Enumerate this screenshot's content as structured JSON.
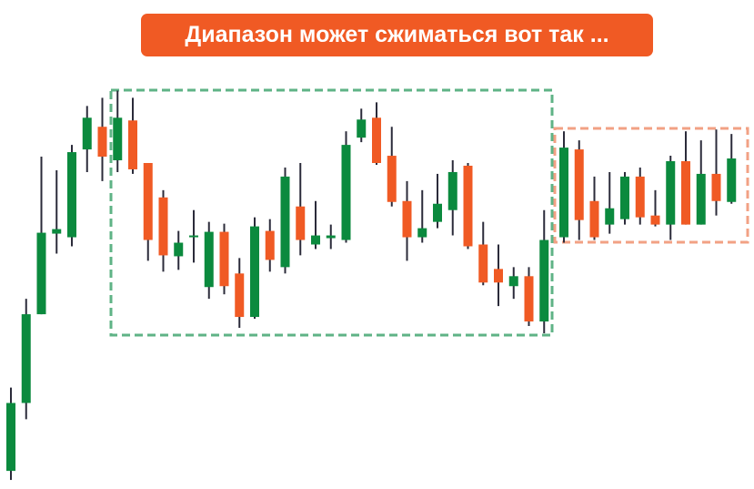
{
  "chart_data": {
    "type": "candlestick",
    "title": "Диапазон может сжиматься вот так ...",
    "up_color": "#0b8a3e",
    "down_color": "#f05a24",
    "ylim": [
      0,
      540
    ],
    "categories": [
      null,
      null,
      null,
      null,
      null,
      null,
      null,
      null,
      null,
      null,
      null,
      null,
      null,
      null,
      null,
      null,
      null,
      null,
      null,
      null,
      null,
      null,
      null,
      null,
      null,
      null,
      null,
      null,
      null,
      null,
      null,
      null,
      null,
      null,
      null,
      null,
      null,
      null,
      null,
      null,
      null,
      null,
      null,
      null,
      null,
      null,
      null,
      null
    ],
    "open": [
      20,
      95,
      193,
      282,
      278,
      375,
      400,
      363,
      407,
      360,
      322,
      257,
      278,
      223,
      284,
      238,
      190,
      285,
      245,
      312,
      270,
      277,
      275,
      388,
      410,
      368,
      318,
      278,
      295,
      308,
      357,
      270,
      243,
      224,
      235,
      185,
      278,
      375,
      318,
      292,
      298,
      345,
      302,
      292,
      362,
      292,
      348,
      317
    ],
    "high": [
      112,
      210,
      367,
      352,
      380,
      423,
      432,
      440,
      432,
      360,
      330,
      285,
      308,
      295,
      293,
      255,
      300,
      298,
      355,
      360,
      318,
      292,
      395,
      420,
      427,
      400,
      340,
      330,
      348,
      363,
      360,
      295,
      270,
      245,
      245,
      308,
      395,
      385,
      345,
      350,
      350,
      355,
      330,
      368,
      395,
      385,
      397,
      392
    ],
    "low": [
      10,
      77,
      193,
      260,
      268,
      350,
      340,
      350,
      348,
      252,
      240,
      242,
      250,
      210,
      215,
      178,
      188,
      240,
      238,
      258,
      265,
      265,
      272,
      383,
      358,
      312,
      252,
      272,
      288,
      280,
      265,
      225,
      202,
      210,
      180,
      172,
      272,
      275,
      275,
      282,
      292,
      292,
      290,
      275,
      292,
      292,
      302,
      315
    ],
    "close": [
      95,
      193,
      283,
      287,
      372,
      410,
      367,
      410,
      353,
      275,
      258,
      272,
      280,
      284,
      224,
      190,
      290,
      253,
      345,
      275,
      280,
      280,
      380,
      408,
      360,
      317,
      278,
      288,
      315,
      350,
      268,
      228,
      228,
      235,
      185,
      275,
      377,
      297,
      278,
      310,
      345,
      300,
      292,
      362,
      292,
      348,
      318,
      365
    ]
  }
}
